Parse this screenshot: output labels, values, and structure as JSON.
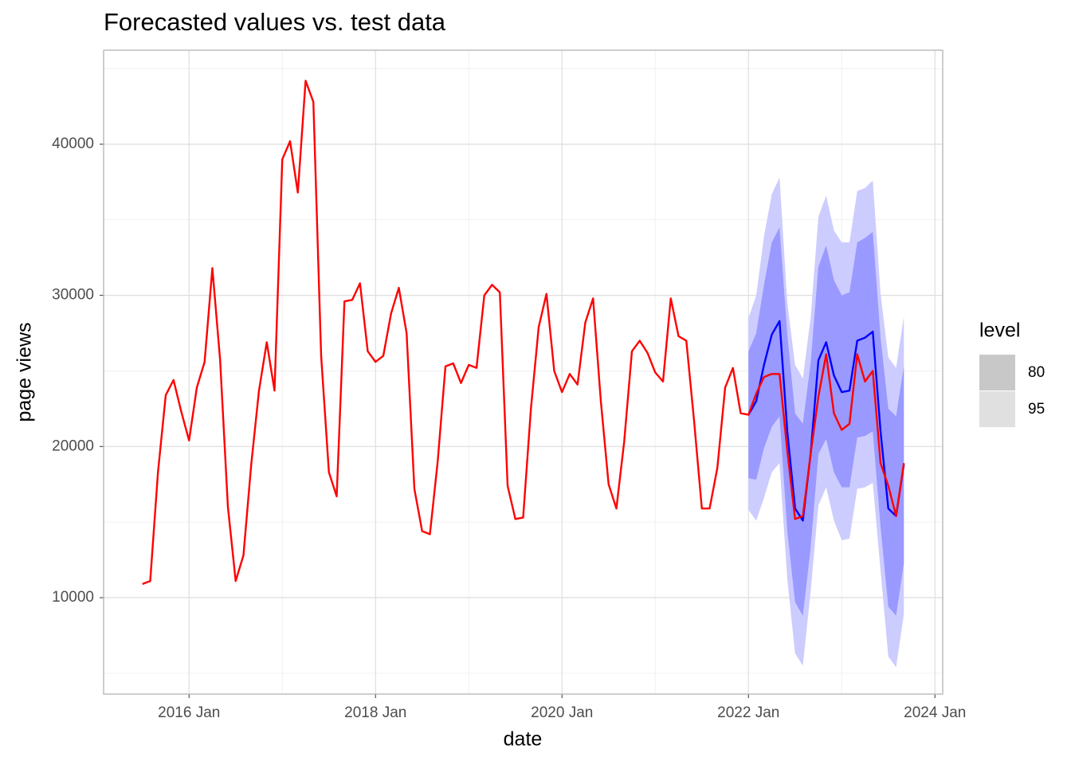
{
  "chart_data": {
    "type": "line",
    "title": "Forecasted values vs. test data",
    "x_label": "date",
    "y_label": "page views",
    "xlim": [
      "2015-02",
      "2024-02"
    ],
    "ylim": [
      3620,
      46220
    ],
    "xticks": [
      {
        "value": "2016-01",
        "label": "2016 Jan"
      },
      {
        "value": "2018-01",
        "label": "2018 Jan"
      },
      {
        "value": "2020-01",
        "label": "2020 Jan"
      },
      {
        "value": "2022-01",
        "label": "2022 Jan"
      },
      {
        "value": "2024-01",
        "label": "2024 Jan"
      }
    ],
    "yticks": [
      10000,
      20000,
      30000,
      40000
    ],
    "xminor": [
      "2017-01",
      "2019-01",
      "2021-01",
      "2023-01"
    ],
    "yminor": [
      5000,
      15000,
      25000,
      35000,
      45000
    ],
    "grid": true,
    "legend": {
      "title": "level",
      "position": "right"
    },
    "bands": [
      {
        "level": 95,
        "color": "#ccccff",
        "legend_color": "#e0e0e0",
        "x": [
          "2022-01",
          "2022-02",
          "2022-03",
          "2022-04",
          "2022-05",
          "2022-06",
          "2022-07",
          "2022-08",
          "2022-09",
          "2022-10",
          "2022-11",
          "2022-12",
          "2023-01",
          "2023-02",
          "2023-03",
          "2023-04",
          "2023-05",
          "2023-06",
          "2023-07",
          "2023-08",
          "2023-09"
        ],
        "upper": [
          28500,
          30000,
          33900,
          36700,
          37800,
          29500,
          25400,
          24500,
          28500,
          35200,
          36600,
          34300,
          33500,
          33500,
          36900,
          37100,
          37600,
          30100,
          25900,
          25200,
          28600
        ],
        "lower": [
          15800,
          15100,
          16600,
          18300,
          18900,
          11200,
          6300,
          5500,
          10400,
          16100,
          17300,
          15100,
          13800,
          13900,
          17200,
          17300,
          17600,
          11800,
          6100,
          5400,
          8900
        ]
      },
      {
        "level": 80,
        "color": "#9999ff",
        "legend_color": "#c8c8c8",
        "x": [
          "2022-01",
          "2022-02",
          "2022-03",
          "2022-04",
          "2022-05",
          "2022-06",
          "2022-07",
          "2022-08",
          "2022-09",
          "2022-10",
          "2022-11",
          "2022-12",
          "2023-01",
          "2023-02",
          "2023-03",
          "2023-04",
          "2023-05",
          "2023-06",
          "2023-07",
          "2023-08",
          "2023-09"
        ],
        "upper": [
          26300,
          27500,
          30700,
          33500,
          34500,
          27400,
          22200,
          21500,
          25500,
          31900,
          33300,
          31000,
          30000,
          30200,
          33500,
          33800,
          34200,
          27200,
          22500,
          22000,
          25300
        ],
        "lower": [
          17900,
          17800,
          19900,
          21300,
          22000,
          14400,
          9700,
          8800,
          13300,
          19500,
          20500,
          18300,
          17300,
          17300,
          20600,
          20700,
          21000,
          14700,
          9400,
          8800,
          12300
        ]
      }
    ],
    "series": [
      {
        "color": "#0000ff",
        "x": [
          "2022-01",
          "2022-02",
          "2022-03",
          "2022-04",
          "2022-05",
          "2022-06",
          "2022-07",
          "2022-08",
          "2022-09",
          "2022-10",
          "2022-11",
          "2022-12",
          "2023-01",
          "2023-02",
          "2023-03",
          "2023-04",
          "2023-05",
          "2023-06",
          "2023-07",
          "2023-08",
          "2023-09"
        ],
        "values": [
          22100,
          23000,
          25400,
          27400,
          28300,
          21000,
          15900,
          15100,
          19500,
          25700,
          26900,
          24700,
          23600,
          23700,
          27000,
          27200,
          27600,
          21000,
          15900,
          15400,
          18800
        ]
      },
      {
        "color": "#ff0000",
        "x": [
          "2015-07",
          "2015-08",
          "2015-09",
          "2015-10",
          "2015-11",
          "2015-12",
          "2016-01",
          "2016-02",
          "2016-03",
          "2016-04",
          "2016-05",
          "2016-06",
          "2016-07",
          "2016-08",
          "2016-09",
          "2016-10",
          "2016-11",
          "2016-12",
          "2017-01",
          "2017-02",
          "2017-03",
          "2017-04",
          "2017-05",
          "2017-06",
          "2017-07",
          "2017-08",
          "2017-09",
          "2017-10",
          "2017-11",
          "2017-12",
          "2018-01",
          "2018-02",
          "2018-03",
          "2018-04",
          "2018-05",
          "2018-06",
          "2018-07",
          "2018-08",
          "2018-09",
          "2018-10",
          "2018-11",
          "2018-12",
          "2019-01",
          "2019-02",
          "2019-03",
          "2019-04",
          "2019-05",
          "2019-06",
          "2019-07",
          "2019-08",
          "2019-09",
          "2019-10",
          "2019-11",
          "2019-12",
          "2020-01",
          "2020-02",
          "2020-03",
          "2020-04",
          "2020-05",
          "2020-06",
          "2020-07",
          "2020-08",
          "2020-09",
          "2020-10",
          "2020-11",
          "2020-12",
          "2021-01",
          "2021-02",
          "2021-03",
          "2021-04",
          "2021-05",
          "2021-06",
          "2021-07",
          "2021-08",
          "2021-09",
          "2021-10",
          "2021-11",
          "2021-12",
          "2022-01",
          "2022-02",
          "2022-03",
          "2022-04",
          "2022-05",
          "2022-06",
          "2022-07",
          "2022-08",
          "2022-09",
          "2022-10",
          "2022-11",
          "2022-12",
          "2023-01",
          "2023-02",
          "2023-03",
          "2023-04",
          "2023-05",
          "2023-06",
          "2023-07",
          "2023-08",
          "2023-09"
        ],
        "values": [
          10900,
          11100,
          18300,
          23400,
          24400,
          22300,
          20400,
          23900,
          25600,
          31800,
          25700,
          16000,
          11100,
          12800,
          18800,
          23700,
          26900,
          23700,
          39000,
          40200,
          36800,
          44200,
          42800,
          26000,
          18300,
          16700,
          29600,
          29700,
          30800,
          26300,
          25600,
          26000,
          28800,
          30500,
          27500,
          17200,
          14400,
          14200,
          19000,
          25300,
          25500,
          24200,
          25400,
          25200,
          30000,
          30700,
          30200,
          17400,
          15200,
          15300,
          22500,
          27900,
          30100,
          25000,
          23600,
          24800,
          24100,
          28200,
          29800,
          23000,
          17500,
          15900,
          20300,
          26300,
          27000,
          26200,
          24900,
          24300,
          29800,
          27300,
          27000,
          21700,
          15900,
          15900,
          18600,
          23900,
          25200,
          22200,
          22100,
          23500,
          24600,
          24800,
          24800,
          19700,
          15200,
          15400,
          19500,
          23300,
          26100,
          22200,
          21100,
          21500,
          26100,
          24300,
          25000,
          18900,
          17400,
          15400,
          18900
        ]
      }
    ]
  }
}
